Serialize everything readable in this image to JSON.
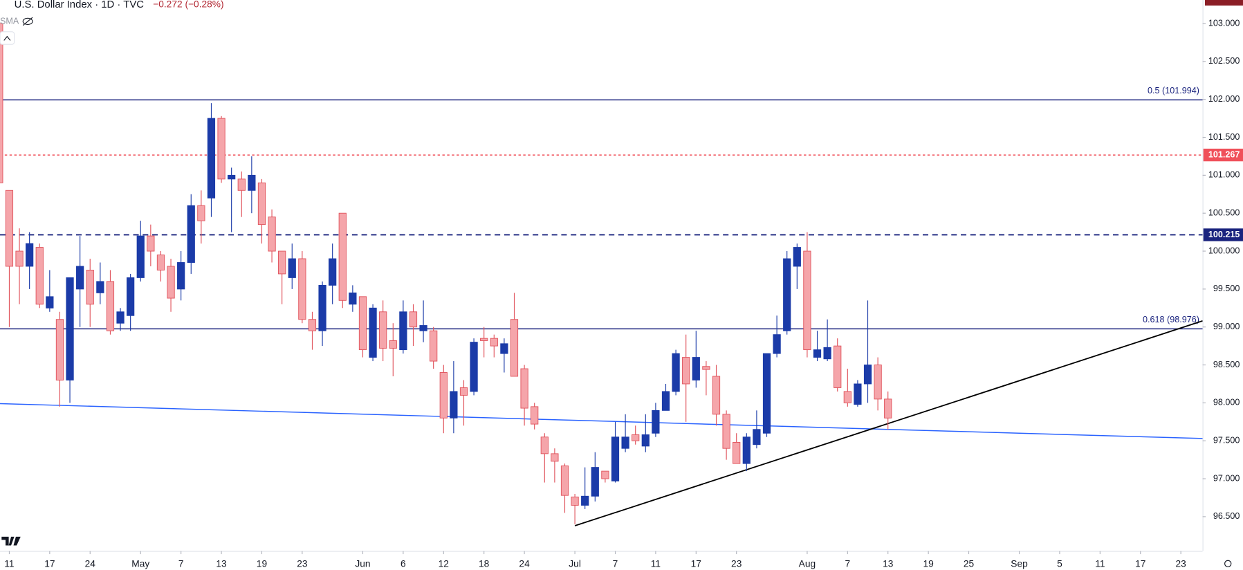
{
  "chart_data": {
    "type": "candlestick",
    "title": "U.S. Dollar Index · 1D · TVC",
    "change": "−0.272 (−0.28%)",
    "indicator": "SMA",
    "up_color": "#1b3ba8",
    "down_color": "#f5a5aa",
    "down_border": "#e0525b",
    "xlim": [
      0.08,
      119.15
    ],
    "ylim": [
      96.1,
      103.31
    ],
    "xticks": [
      {
        "value": 1,
        "label": "11"
      },
      {
        "value": 5,
        "label": "17"
      },
      {
        "value": 9,
        "label": "24"
      },
      {
        "value": 14,
        "label": "May"
      },
      {
        "value": 18,
        "label": "7"
      },
      {
        "value": 22,
        "label": "13"
      },
      {
        "value": 26,
        "label": "19"
      },
      {
        "value": 30,
        "label": "23"
      },
      {
        "value": 36,
        "label": "Jun"
      },
      {
        "value": 40,
        "label": "6"
      },
      {
        "value": 44,
        "label": "12"
      },
      {
        "value": 48,
        "label": "18"
      },
      {
        "value": 52,
        "label": "24"
      },
      {
        "value": 57,
        "label": "Jul"
      },
      {
        "value": 61,
        "label": "7"
      },
      {
        "value": 65,
        "label": "11"
      },
      {
        "value": 69,
        "label": "17"
      },
      {
        "value": 73,
        "label": "23"
      },
      {
        "value": 80,
        "label": "Aug"
      },
      {
        "value": 84,
        "label": "7"
      },
      {
        "value": 88,
        "label": "13"
      },
      {
        "value": 92,
        "label": "19"
      },
      {
        "value": 96,
        "label": "25"
      },
      {
        "value": 101,
        "label": "Sep"
      },
      {
        "value": 105,
        "label": "5"
      },
      {
        "value": 109,
        "label": "11"
      },
      {
        "value": 113,
        "label": "17"
      },
      {
        "value": 117,
        "label": "23"
      }
    ],
    "yticks": [
      {
        "value": 96.5,
        "label": "96.500"
      },
      {
        "value": 97,
        "label": "97.000"
      },
      {
        "value": 97.5,
        "label": "97.500"
      },
      {
        "value": 98,
        "label": "98.000"
      },
      {
        "value": 98.5,
        "label": "98.500"
      },
      {
        "value": 99,
        "label": "99.000"
      },
      {
        "value": 99.5,
        "label": "99.500"
      },
      {
        "value": 100,
        "label": "100.000"
      },
      {
        "value": 100.5,
        "label": "100.500"
      },
      {
        "value": 101,
        "label": "101.000"
      },
      {
        "value": 101.5,
        "label": "101.500"
      },
      {
        "value": 102,
        "label": "102.000"
      },
      {
        "value": 102.5,
        "label": "102.500"
      },
      {
        "value": 103,
        "label": "103.000"
      }
    ],
    "open": [
      103.0,
      100.8,
      100.0,
      99.8,
      100.05,
      99.25,
      99.1,
      98.3,
      99.5,
      99.75,
      99.45,
      99.6,
      99.05,
      99.15,
      99.65,
      100.2,
      99.95,
      99.8,
      99.5,
      99.85,
      100.6,
      100.7,
      101.75,
      100.95,
      100.95,
      100.8,
      100.9,
      100.45,
      100.0,
      99.65,
      99.9,
      99.1,
      98.95,
      99.55,
      100.5,
      99.3,
      99.4,
      98.6,
      99.2,
      98.82,
      98.7,
      99.2,
      98.95,
      98.95,
      98.4,
      97.8,
      98.2,
      98.15,
      98.85,
      98.85,
      98.65,
      99.1,
      98.45,
      97.95,
      97.55,
      97.33,
      97.17,
      96.76,
      96.65,
      96.77,
      97.1,
      96.97,
      97.4,
      97.58,
      97.43,
      97.6,
      97.9,
      98.15,
      98.6,
      98.3,
      98.48,
      98.35,
      97.85,
      97.48,
      97.2,
      97.45,
      97.6,
      98.65,
      98.95,
      99.8,
      100.0,
      98.6,
      98.58,
      98.75,
      98.15,
      97.98,
      98.25,
      98.5,
      98.05
    ],
    "high": [
      103.4,
      100.8,
      100.3,
      100.25,
      100.1,
      99.75,
      99.2,
      99.65,
      100.2,
      99.9,
      99.85,
      99.75,
      99.25,
      99.7,
      100.4,
      100.35,
      100.0,
      99.9,
      100.0,
      100.75,
      100.8,
      101.95,
      101.78,
      101.1,
      101.05,
      101.25,
      100.95,
      100.55,
      100.0,
      100.1,
      100.0,
      99.2,
      99.6,
      100.1,
      100.5,
      99.55,
      99.4,
      99.3,
      99.35,
      99.05,
      99.35,
      99.3,
      99.35,
      99.0,
      98.5,
      98.55,
      98.3,
      98.85,
      99.0,
      98.9,
      98.85,
      99.45,
      98.5,
      98.0,
      97.6,
      97.4,
      97.2,
      96.8,
      97.15,
      97.35,
      97.1,
      97.75,
      97.85,
      97.7,
      97.85,
      98.0,
      98.25,
      98.7,
      98.9,
      98.95,
      98.55,
      98.5,
      97.9,
      97.6,
      97.6,
      97.9,
      98.65,
      99.15,
      100.0,
      100.1,
      100.25,
      98.95,
      99.1,
      98.85,
      98.45,
      98.3,
      99.35,
      98.6,
      98.15
    ],
    "low": [
      99.0,
      99.0,
      99.3,
      99.5,
      99.25,
      99.2,
      97.95,
      98.0,
      99.0,
      99.0,
      99.3,
      98.9,
      98.95,
      98.95,
      99.6,
      99.8,
      99.6,
      99.2,
      99.35,
      99.7,
      100.1,
      100.45,
      100.9,
      100.25,
      100.45,
      100.5,
      100.1,
      99.85,
      99.3,
      99.5,
      99.05,
      98.7,
      98.75,
      99.3,
      99.25,
      99.2,
      98.6,
      98.55,
      98.55,
      98.35,
      98.65,
      98.75,
      98.8,
      98.45,
      97.6,
      97.6,
      97.7,
      98.1,
      98.6,
      98.6,
      98.4,
      98.35,
      97.7,
      97.65,
      96.95,
      96.95,
      96.55,
      96.4,
      96.6,
      96.7,
      96.95,
      96.95,
      97.35,
      97.45,
      97.35,
      97.55,
      97.9,
      98.1,
      97.75,
      98.2,
      98.1,
      97.7,
      97.25,
      97.2,
      97.1,
      97.4,
      97.55,
      98.6,
      98.9,
      99.5,
      98.6,
      98.55,
      98.55,
      98.15,
      97.95,
      97.95,
      98.0,
      97.9,
      97.65
    ],
    "close": [
      100.9,
      99.8,
      99.8,
      100.1,
      99.3,
      99.4,
      98.3,
      99.65,
      99.8,
      99.3,
      99.6,
      98.95,
      99.2,
      99.65,
      100.2,
      100.0,
      99.75,
      99.38,
      99.85,
      100.6,
      100.4,
      101.75,
      100.95,
      101.0,
      100.8,
      101.0,
      100.35,
      100.0,
      99.7,
      99.9,
      99.1,
      98.95,
      99.55,
      99.9,
      99.35,
      99.45,
      98.7,
      99.25,
      98.72,
      98.72,
      99.2,
      99.0,
      99.02,
      98.55,
      97.8,
      98.15,
      98.1,
      98.8,
      98.82,
      98.75,
      98.78,
      98.35,
      97.93,
      97.72,
      97.33,
      97.23,
      96.78,
      96.65,
      96.77,
      97.15,
      97.0,
      97.55,
      97.55,
      97.5,
      97.58,
      97.9,
      98.15,
      98.65,
      98.25,
      98.6,
      98.44,
      97.85,
      97.4,
      97.2,
      97.55,
      97.65,
      98.65,
      98.9,
      99.9,
      100.05,
      98.7,
      98.7,
      98.73,
      98.2,
      98.0,
      98.25,
      98.5,
      98.05,
      97.8
    ],
    "levels": [
      {
        "value": 101.994,
        "label": "0.5 (101.994)",
        "color": "#1a237e",
        "dashed": false
      },
      {
        "value": 101.267,
        "color": "#f0505a",
        "dashed": true,
        "badge": true
      },
      {
        "value": 100.215,
        "color": "#1a237e",
        "dashed": true,
        "badge": true
      },
      {
        "value": 98.976,
        "label": "0.618 (98.976)",
        "color": "#1a237e",
        "dashed": false
      }
    ],
    "trendlines": [
      {
        "color": "#2962ff",
        "x": [
          0.08,
          119.15
        ],
        "y": [
          97.99,
          97.53
        ]
      },
      {
        "color": "#000000",
        "x": [
          57,
          119.15
        ],
        "y": [
          96.38,
          99.08
        ]
      }
    ]
  }
}
